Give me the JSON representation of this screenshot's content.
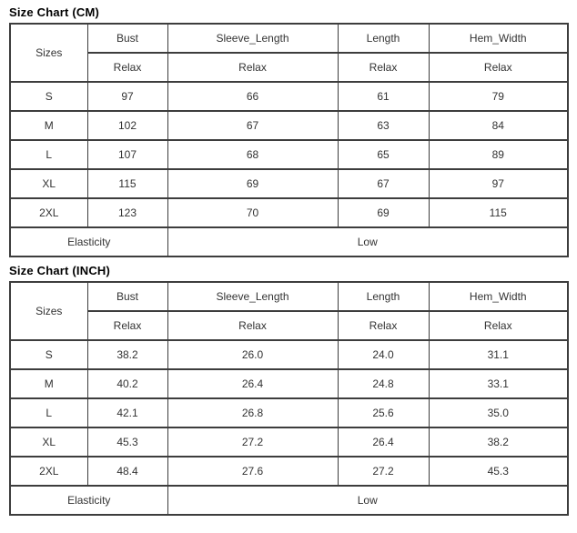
{
  "page": {
    "background_color": "#ffffff",
    "border_color": "#3d3d3d",
    "text_color": "#333333",
    "title_color": "#000000"
  },
  "chart_data": [
    {
      "type": "table",
      "title": "Size Chart (CM)",
      "unit": "CM",
      "corner_header": "Sizes",
      "columns": [
        "Bust",
        "Sleeve_Length",
        "Length",
        "Hem_Width"
      ],
      "fit_labels": [
        "Relax",
        "Relax",
        "Relax",
        "Relax"
      ],
      "rows": [
        {
          "size": "S",
          "values": [
            "97",
            "66",
            "61",
            "79"
          ]
        },
        {
          "size": "M",
          "values": [
            "102",
            "67",
            "63",
            "84"
          ]
        },
        {
          "size": "L",
          "values": [
            "107",
            "68",
            "65",
            "89"
          ]
        },
        {
          "size": "XL",
          "values": [
            "115",
            "69",
            "67",
            "97"
          ]
        },
        {
          "size": "2XL",
          "values": [
            "123",
            "70",
            "69",
            "115"
          ]
        }
      ],
      "footer_label": "Elasticity",
      "footer_value": "Low"
    },
    {
      "type": "table",
      "title": "Size Chart (INCH)",
      "unit": "INCH",
      "corner_header": "Sizes",
      "columns": [
        "Bust",
        "Sleeve_Length",
        "Length",
        "Hem_Width"
      ],
      "fit_labels": [
        "Relax",
        "Relax",
        "Relax",
        "Relax"
      ],
      "rows": [
        {
          "size": "S",
          "values": [
            "38.2",
            "26.0",
            "24.0",
            "31.1"
          ]
        },
        {
          "size": "M",
          "values": [
            "40.2",
            "26.4",
            "24.8",
            "33.1"
          ]
        },
        {
          "size": "L",
          "values": [
            "42.1",
            "26.8",
            "25.6",
            "35.0"
          ]
        },
        {
          "size": "XL",
          "values": [
            "45.3",
            "27.2",
            "26.4",
            "38.2"
          ]
        },
        {
          "size": "2XL",
          "values": [
            "48.4",
            "27.6",
            "27.2",
            "45.3"
          ]
        }
      ],
      "footer_label": "Elasticity",
      "footer_value": "Low"
    }
  ]
}
